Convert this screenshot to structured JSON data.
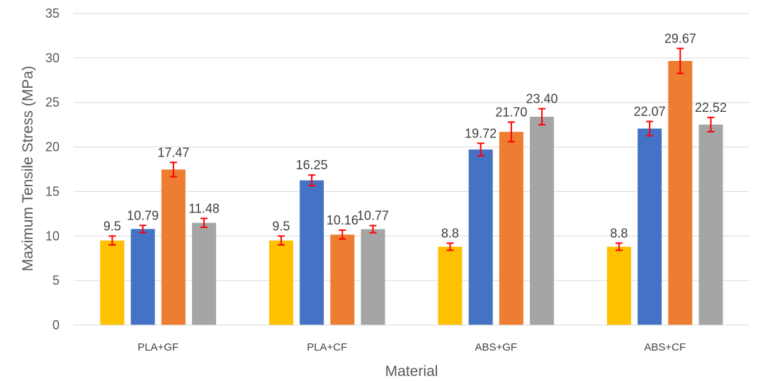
{
  "chart_data": {
    "type": "bar",
    "title": "",
    "xlabel": "Material",
    "ylabel": "Maximum Tensile Stress (MPa)",
    "ylim": [
      0,
      35
    ],
    "yticks": [
      0,
      5,
      10,
      15,
      20,
      25,
      30,
      35
    ],
    "grid": true,
    "legend": "none",
    "categories": [
      "PLA+GF",
      "PLA+CF",
      "ABS+GF",
      "ABS+CF"
    ],
    "series": [
      {
        "color": "#FFC000",
        "values": [
          9.5,
          9.5,
          8.8,
          8.8
        ],
        "labels": [
          "9.5",
          "9.5",
          "8.8",
          "8.8"
        ],
        "errors": [
          0.5,
          0.5,
          0.4,
          0.4
        ]
      },
      {
        "color": "#4472C4",
        "values": [
          10.79,
          16.25,
          19.72,
          22.07
        ],
        "labels": [
          "10.79",
          "16.25",
          "19.72",
          "22.07"
        ],
        "errors": [
          0.4,
          0.6,
          0.7,
          0.8
        ]
      },
      {
        "color": "#ED7D31",
        "values": [
          17.47,
          10.16,
          21.7,
          29.67
        ],
        "labels": [
          "17.47",
          "10.16",
          "21.70",
          "29.67"
        ],
        "errors": [
          0.8,
          0.5,
          1.1,
          1.4
        ]
      },
      {
        "color": "#A5A5A5",
        "values": [
          11.48,
          10.77,
          23.4,
          22.52
        ],
        "labels": [
          "11.48",
          "10.77",
          "23.40",
          "22.52"
        ],
        "errors": [
          0.5,
          0.4,
          0.9,
          0.8
        ]
      }
    ],
    "error_bar_color": "#FF0000",
    "gridline_color": "#D9D9D9"
  }
}
